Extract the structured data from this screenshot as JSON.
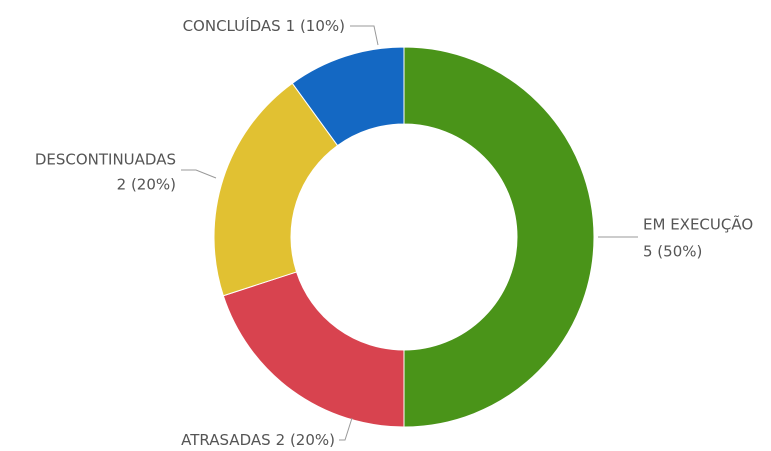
{
  "chart_data": {
    "type": "donut",
    "categories": [
      "EM EXECUÇÃO",
      "ATRASADAS",
      "DESCONTINUADAS",
      "CONCLUÍDAS"
    ],
    "values": [
      5,
      2,
      2,
      1
    ],
    "value_labels": [
      "5 (50%)",
      "2 (20%)",
      "2 (20%)",
      "1 (10%)"
    ],
    "colors": [
      "#4a9419",
      "#d8434f",
      "#e1c132",
      "#1468c3"
    ]
  }
}
